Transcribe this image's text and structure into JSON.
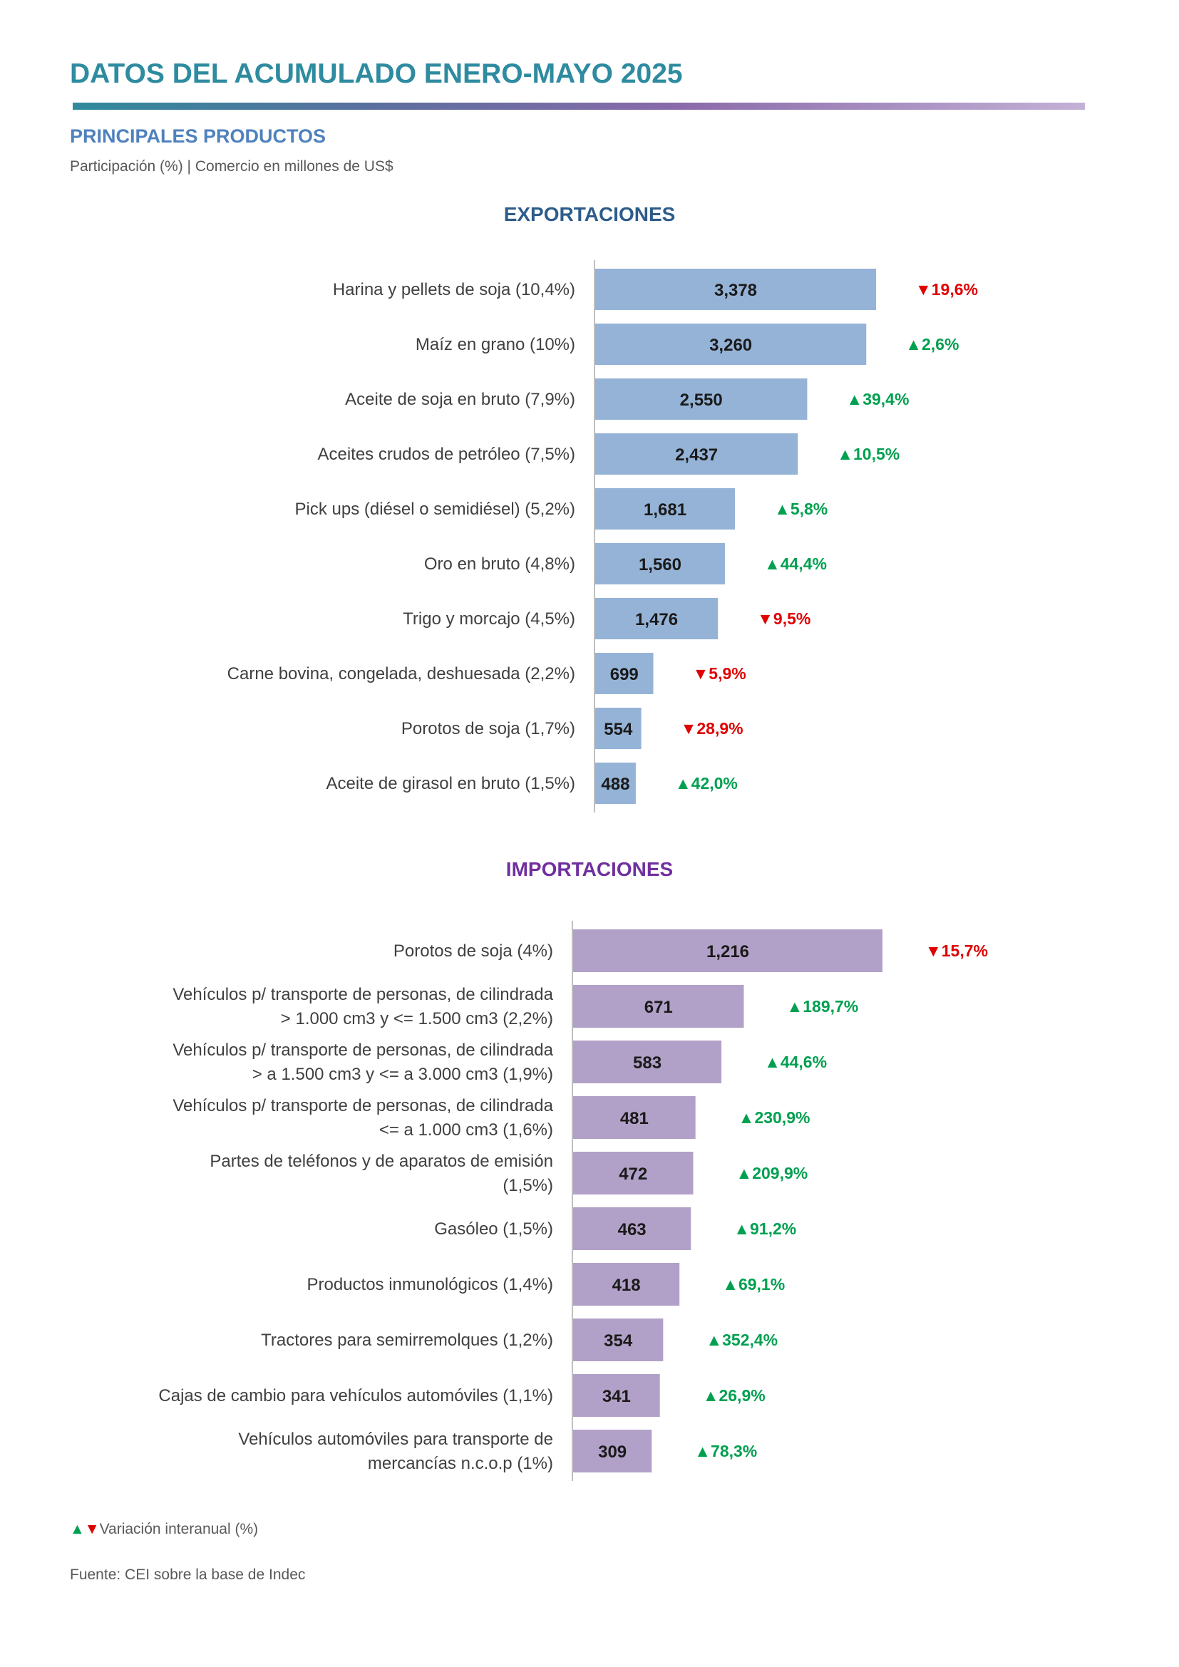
{
  "header": {
    "title": "DATOS DEL ACUMULADO ENERO-MAYO 2025",
    "section_title": "PRINCIPALES PRODUCTOS",
    "subtitle": "Participación (%) | Comercio en millones de US$"
  },
  "colors": {
    "title": "#2e8ba0",
    "exports_bar": "#95b3d7",
    "imports_bar": "#b1a0c7",
    "up": "#00a050",
    "down": "#e00000"
  },
  "chart_data": [
    {
      "type": "bar",
      "orientation": "horizontal",
      "title": "EXPORTACIONES",
      "categories": [
        "Harina y pellets de soja  (10,4%)",
        "Maíz en grano  (10%)",
        "Aceite de soja en bruto  (7,9%)",
        "Aceites crudos de petróleo (7,5%)",
        "Pick ups (diésel o semidiésel)  (5,2%)",
        "Oro en bruto  (4,8%)",
        "Trigo y morcajo  (4,5%)",
        "Carne bovina, congelada, deshuesada (2,2%)",
        "Porotos de soja  (1,7%)",
        "Aceite de girasol en bruto  (1,5%)"
      ],
      "values": [
        3378,
        3260,
        2550,
        2437,
        1681,
        1560,
        1476,
        699,
        554,
        488
      ],
      "value_labels": [
        "3,378",
        "3,260",
        "2,550",
        "2,437",
        "1,681",
        "1,560",
        "1,476",
        "699",
        "554",
        "488"
      ],
      "variation": [
        "19,6%",
        "2,6%",
        "39,4%",
        "10,5%",
        "5,8%",
        "44,4%",
        "9,5%",
        "5,9%",
        "28,9%",
        "42,0%"
      ],
      "variation_dir": [
        "down",
        "up",
        "up",
        "up",
        "up",
        "up",
        "down",
        "down",
        "down",
        "up"
      ]
    },
    {
      "type": "bar",
      "orientation": "horizontal",
      "title": "IMPORTACIONES",
      "categories": [
        [
          "Porotos de soja  (4%)"
        ],
        [
          "Vehículos p/ transporte de personas, de cilindrada",
          "> 1.000 cm3 y <= 1.500 cm3  (2,2%)"
        ],
        [
          "Vehículos p/ transporte de personas, de cilindrada",
          "> a 1.500 cm3 y <= a 3.000 cm3  (1,9%)"
        ],
        [
          "Vehículos p/ transporte de personas, de cilindrada",
          "<= a 1.000 cm3 (1,6%)"
        ],
        [
          "Partes de teléfonos y de aparatos de emisión",
          "(1,5%)"
        ],
        [
          "Gasóleo  (1,5%)"
        ],
        [
          "Productos inmunológicos (1,4%)"
        ],
        [
          "Tractores para semirremolques (1,2%)"
        ],
        [
          "Cajas de cambio para vehículos automóviles  (1,1%)"
        ],
        [
          "Vehículos automóviles para transporte de",
          "mercancías n.c.o.p (1%)"
        ]
      ],
      "values": [
        1216,
        671,
        583,
        481,
        472,
        463,
        418,
        354,
        341,
        309
      ],
      "value_labels": [
        "1,216",
        "671",
        "583",
        "481",
        "472",
        "463",
        "418",
        "354",
        "341",
        "309"
      ],
      "variation": [
        "15,7%",
        "189,7%",
        "44,6%",
        "230,9%",
        "209,9%",
        "91,2%",
        "69,1%",
        "352,4%",
        "26,9%",
        "78,3%"
      ],
      "variation_dir": [
        "down",
        "up",
        "up",
        "up",
        "up",
        "up",
        "up",
        "up",
        "up",
        "up"
      ]
    }
  ],
  "footer": {
    "legend_markers": "▲▼",
    "legend_text": "Variación interanual (%)",
    "source": "Fuente: CEI sobre la base de Indec"
  }
}
